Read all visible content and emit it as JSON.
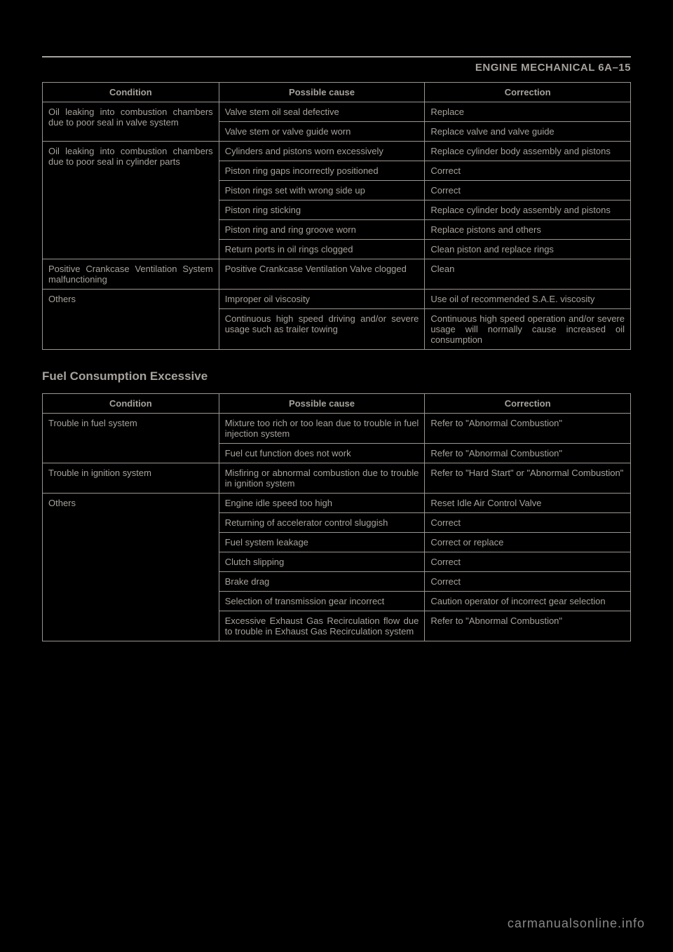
{
  "header": "ENGINE MECHANICAL  6A–15",
  "table1": {
    "columns": [
      "Condition",
      "Possible cause",
      "Correction"
    ],
    "groups": [
      {
        "condition": "Oil leaking into combustion chambers due to poor seal in valve system",
        "rows": [
          {
            "cause": "Valve stem oil seal defective",
            "corr": "Replace"
          },
          {
            "cause": "Valve stem or valve guide worn",
            "corr": "Replace valve and valve guide"
          }
        ]
      },
      {
        "condition": "Oil leaking into combustion chambers due to poor seal in cylinder parts",
        "rows": [
          {
            "cause": "Cylinders and pistons worn excessively",
            "corr": "Replace cylinder body assembly and pistons"
          },
          {
            "cause": "Piston ring gaps incorrectly positioned",
            "corr": "Correct"
          },
          {
            "cause": "Piston rings set with wrong side up",
            "corr": "Correct"
          },
          {
            "cause": "Piston ring sticking",
            "corr": "Replace cylinder body assembly and pistons"
          },
          {
            "cause": "Piston ring and ring groove worn",
            "corr": "Replace pistons and others"
          },
          {
            "cause": "Return ports in oil rings clogged",
            "corr": "Clean piston and replace rings"
          }
        ]
      },
      {
        "condition": "Positive Crankcase Ventilation System malfunctioning",
        "rows": [
          {
            "cause": "Positive Crankcase Ventilation Valve clogged",
            "corr": "Clean"
          }
        ]
      },
      {
        "condition": "Others",
        "rows": [
          {
            "cause": "Improper oil viscosity",
            "corr": "Use oil of recommended S.A.E. viscosity"
          },
          {
            "cause": "Continuous high speed driving and/or severe usage such as trailer towing",
            "corr": "Continuous high speed operation and/or severe usage will normally cause increased oil consumption"
          }
        ]
      }
    ]
  },
  "section2_title": "Fuel Consumption Excessive",
  "table2": {
    "columns": [
      "Condition",
      "Possible cause",
      "Correction"
    ],
    "groups": [
      {
        "condition": "Trouble in fuel system",
        "rows": [
          {
            "cause": "Mixture too rich or too lean due to trouble in fuel injection system",
            "corr": "Refer to \"Abnormal Combustion\""
          },
          {
            "cause": "Fuel cut function does not work",
            "corr": "Refer to \"Abnormal Combustion\""
          }
        ]
      },
      {
        "condition": "Trouble in ignition system",
        "rows": [
          {
            "cause": "Misfiring or abnormal combustion due to trouble in ignition system",
            "corr": "Refer to \"Hard Start\" or \"Abnormal Combustion\""
          }
        ]
      },
      {
        "condition": "Others",
        "rows": [
          {
            "cause": "Engine idle speed too high",
            "corr": "Reset Idle Air Control Valve"
          },
          {
            "cause": "Returning of accelerator control sluggish",
            "corr": "Correct"
          },
          {
            "cause": "Fuel system leakage",
            "corr": "Correct or replace"
          },
          {
            "cause": "Clutch slipping",
            "corr": "Correct"
          },
          {
            "cause": "Brake drag",
            "corr": "Correct"
          },
          {
            "cause": "Selection of transmission gear incorrect",
            "corr": "Caution operator of incorrect gear selection"
          },
          {
            "cause": "Excessive Exhaust Gas Recirculation flow due to trouble in Exhaust Gas Recirculation system",
            "corr": "Refer to \"Abnormal Combustion\""
          }
        ]
      }
    ]
  },
  "footer": "carmanualsonline.info"
}
